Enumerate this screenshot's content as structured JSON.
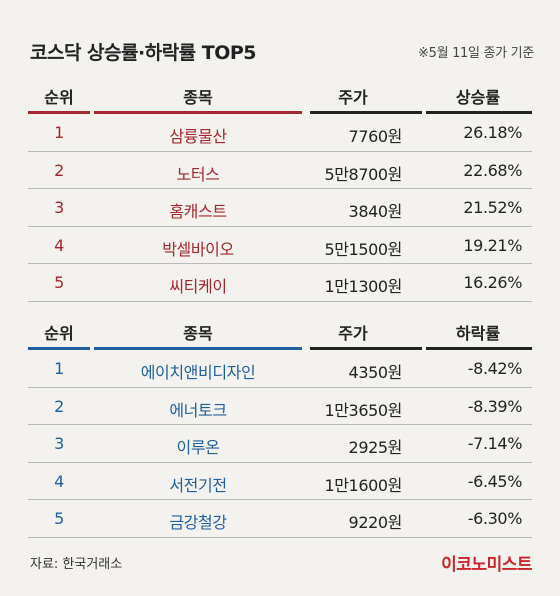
{
  "title": "코스닥 상승률·하락률 TOP5",
  "note": "※5월 11일 종가 기준",
  "gainers": {
    "headers": {
      "rank": "순위",
      "name": "종목",
      "price": "주가",
      "rate": "상승률"
    },
    "rows": [
      {
        "rank": "1",
        "name": "삼륭물산",
        "price": "7760원",
        "rate": "26.18%"
      },
      {
        "rank": "2",
        "name": "노터스",
        "price": "5만8700원",
        "rate": "22.68%"
      },
      {
        "rank": "3",
        "name": "홈캐스트",
        "price": "3840원",
        "rate": "21.52%"
      },
      {
        "rank": "4",
        "name": "박셀바이오",
        "price": "5만1500원",
        "rate": "19.21%"
      },
      {
        "rank": "5",
        "name": "씨티케이",
        "price": "1만1300원",
        "rate": "16.26%"
      }
    ]
  },
  "losers": {
    "headers": {
      "rank": "순위",
      "name": "종목",
      "price": "주가",
      "rate": "하락률"
    },
    "rows": [
      {
        "rank": "1",
        "name": "에이치앤비디자인",
        "price": "4350원",
        "rate": "-8.42%"
      },
      {
        "rank": "2",
        "name": "에너토크",
        "price": "1만3650원",
        "rate": "-8.39%"
      },
      {
        "rank": "3",
        "name": "이루온",
        "price": "2925원",
        "rate": "-7.14%"
      },
      {
        "rank": "4",
        "name": "서전기전",
        "price": "1만1600원",
        "rate": "-6.45%"
      },
      {
        "rank": "5",
        "name": "금강철강",
        "price": "9220원",
        "rate": "-6.30%"
      }
    ]
  },
  "source": "자료: 한국거래소",
  "logo": "이코노미스트",
  "colors": {
    "gain": "#a3272e",
    "loss": "#1e5f9e",
    "logo": "#c8252b"
  }
}
